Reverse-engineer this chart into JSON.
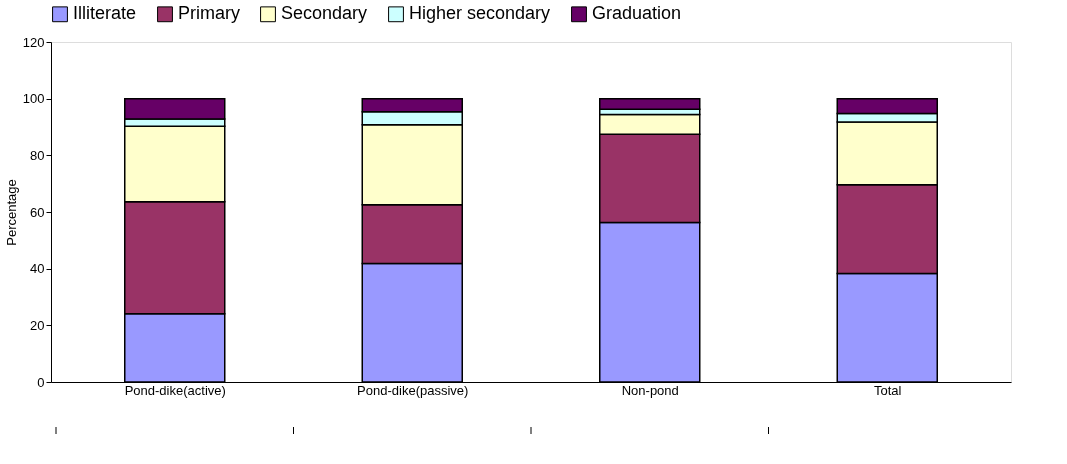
{
  "chart_data": {
    "type": "bar",
    "stacked": true,
    "ylabel": "Percentage",
    "categories": [
      "Pond-dike(active)",
      "Pond-dike(passive)",
      "Non-pond",
      "Total"
    ],
    "series": [
      {
        "name": "Illiterate",
        "color": "#9999ff",
        "values": [
          24.1,
          41.8,
          56.3,
          38.3
        ]
      },
      {
        "name": "Primary",
        "color": "#993366",
        "values": [
          39.5,
          20.8,
          31.1,
          31.3
        ]
      },
      {
        "name": "Secondary",
        "color": "#ffffcc",
        "values": [
          26.7,
          28.2,
          7.0,
          22.2
        ]
      },
      {
        "name": "Higher secondary",
        "color": "#ccffff",
        "values": [
          2.5,
          4.6,
          1.9,
          3.0
        ]
      },
      {
        "name": "Graduation",
        "color": "#660066",
        "values": [
          7.2,
          4.6,
          3.7,
          5.2
        ]
      }
    ],
    "ylim": [
      0,
      120
    ],
    "yticks": [
      0,
      20,
      40,
      60,
      80,
      100,
      120
    ],
    "grid": false,
    "legend": "top"
  }
}
